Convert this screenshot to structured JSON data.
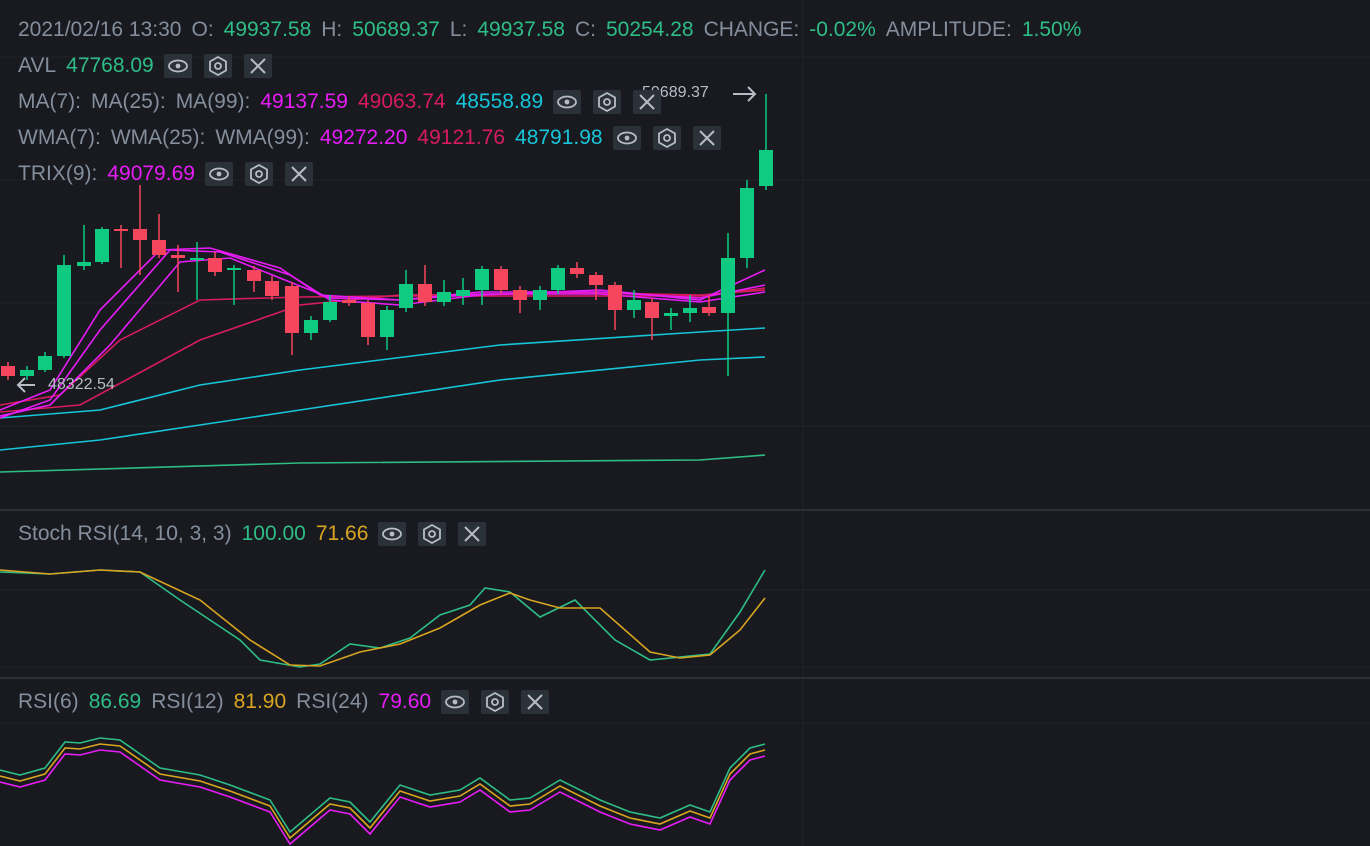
{
  "header": {
    "datetime": "2021/02/16 13:30",
    "fields": [
      {
        "label": "O:",
        "value": "49937.58"
      },
      {
        "label": "H:",
        "value": "50689.37"
      },
      {
        "label": "L:",
        "value": "49937.58"
      },
      {
        "label": "C:",
        "value": "50254.28"
      },
      {
        "label": "CHANGE:",
        "value": "-0.02%"
      },
      {
        "label": "AMPLITUDE:",
        "value": "1.50%"
      }
    ]
  },
  "indicators": {
    "avl": {
      "label": "AVL",
      "value": "47768.09"
    },
    "ma": {
      "labels": [
        "MA(7):",
        "MA(25):",
        "MA(99):"
      ],
      "values": [
        "49137.59",
        "49063.74",
        "48558.89"
      ]
    },
    "wma": {
      "labels": [
        "WMA(7):",
        "WMA(25):",
        "WMA(99):"
      ],
      "values": [
        "49272.20",
        "49121.76",
        "48791.98"
      ]
    },
    "trix": {
      "label": "TRIX(9):",
      "value": "49079.69"
    },
    "stoch_rsi": {
      "label": "Stoch RSI(14, 10, 3, 3)",
      "values": [
        "100.00",
        "71.66"
      ]
    },
    "rsi": {
      "labels": [
        "RSI(6)",
        "RSI(12)",
        "RSI(24)"
      ],
      "values": [
        "86.69",
        "81.90",
        "79.60"
      ]
    }
  },
  "price_labels": {
    "low": "48322.54",
    "high": "50689.37"
  }
}
